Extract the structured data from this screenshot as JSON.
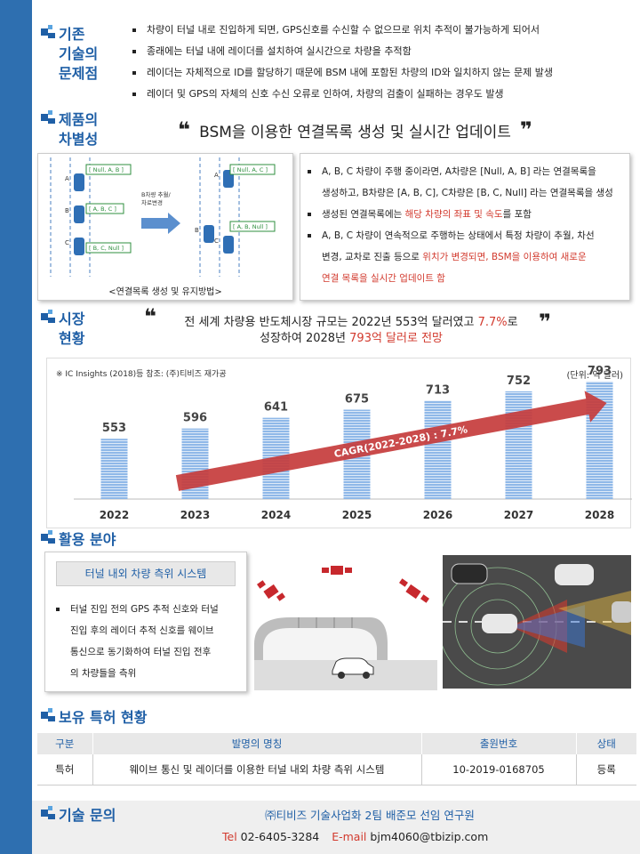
{
  "section1": {
    "title": "기존\n기술의\n문제점",
    "bullets": [
      "차량이 터널 내로 진입하게 되면, GPS신호를 수신할 수 없으므로 위치 추적이 불가능하게 되어서",
      "종래에는 터널 내에 레이더를 설치하여 실시간으로 차량을 추적함",
      "레이더는 자체적으로 ID를 할당하기 때문에 BSM 내에 포함된 차량의 ID와 일치하지 않는 문제 발생",
      "레이더 및 GPS의 자체의 신호 수신 오류로 인하여, 차량의 검출이 실패하는 경우도 발생"
    ]
  },
  "section2": {
    "title": "제품의\n차별성",
    "quote_open": "❝",
    "quote_close": "❞",
    "headline": "BSM을 이용한 연결목록 생성 및 실시간 업데이트",
    "diagram": {
      "left_labels": [
        "[ Null, A, B ]",
        "[ A, B, C ]",
        "[ B, C, Null ]"
      ],
      "right_labels": [
        "[ Null, A, C ]",
        "[ A, B, Null ]"
      ],
      "car_letters_left": [
        "A",
        "B",
        "C"
      ],
      "car_letters_right": [
        "A",
        "B",
        "C"
      ],
      "arrow_text": "B차량 추월/\n차로변경",
      "caption": "<연결목록 생성 및 유지방법>"
    },
    "points": [
      {
        "text1": "A, B, C 차량이 주행 중이라면, A차량은 [Null, A, B] 라는 연결목록을",
        "text2": "생성하고, B차량은 [A, B, C], C차량은 [B, C, Null] 라는 연결목록을 생성"
      },
      {
        "text1": "생성된 연결목록에는 ",
        "red": "해당 차량의 좌표 및 속도",
        "text2": "를 포함"
      },
      {
        "text1": "A, B, C 차량이 연속적으로 주행하는 상태에서 특정 차량이 추월, 차선",
        "text2": "변경, 교차로 진출 등으로 ",
        "red": "위치가 변경되면, BSM을 이용하여 새로운",
        "red2": "연결 목록을 실시간 업데이트 함"
      }
    ]
  },
  "section3": {
    "title": "시장\n현황",
    "quote_line1_a": "전 세계 차량용 반도체시장 규모는 2022년 553억 달러였고 ",
    "quote_line1_red": "7.7%",
    "quote_line1_b": "로",
    "quote_line2_a": "성장하여 2028년 ",
    "quote_line2_red": "793억 달러로 전망",
    "source": "※ IC Insights (2018)등 참조: (주)티비즈 재가공",
    "unit": "(단위: 억 달러)",
    "cagr": "CAGR(2022-2028) : 7.7%"
  },
  "chart_data": {
    "type": "bar",
    "categories": [
      "2022",
      "2023",
      "2024",
      "2025",
      "2026",
      "2027",
      "2028"
    ],
    "values": [
      553,
      596,
      641,
      675,
      713,
      752,
      793
    ],
    "title": "",
    "xlabel": "",
    "ylabel": "",
    "ylim": [
      300,
      800
    ],
    "bar_color": "#8fb8e8",
    "arrow_color": "#c63c3c"
  },
  "section4": {
    "title": "활용 분야",
    "system_label": "터널 내외 차량 측위 시스템",
    "bullet_lines": [
      "터널 진입 전의 GPS 추적 신호와 터널",
      "진입 후의 레이더 추적 신호를 웨이브",
      "통신으로 동기화하여 터널 진입 전후",
      "의 차량들을 측위"
    ]
  },
  "section5": {
    "title": "보유 특허 현황",
    "headers": [
      "구분",
      "발명의 명칭",
      "출원번호",
      "상태"
    ],
    "rows": [
      [
        "특허",
        "웨이브 통신 및 레이더를 이용한 터널 내외 차량 측위 시스템",
        "10-2019-0168705",
        "등록"
      ]
    ]
  },
  "section6": {
    "title": "기술 문의",
    "org": "㈜티비즈 기술사업화 2팀 배준모 선임 연구원",
    "tel_label": "Tel",
    "tel": "02-6405-3284",
    "email_label": "E-mail",
    "email": "bjm4060@tbizip.com"
  },
  "colors": {
    "accent": "#1f5fa6",
    "sidebar": "#2e6fb0",
    "red": "#d23a2e",
    "header_bg": "#e8e8e8",
    "footer_bg": "#efefef"
  }
}
